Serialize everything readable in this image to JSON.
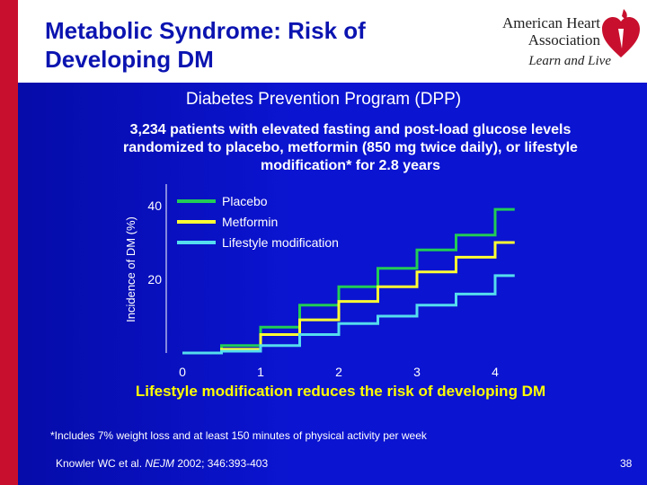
{
  "slide": {
    "title_line1": "Metabolic Syndrome: Risk of",
    "title_line2": "Developing DM",
    "subtitle": "Diabetes Prevention Program (DPP)",
    "description_line1": "3,234 patients with elevated fasting and post-load glucose levels",
    "description_line2": "randomized to placebo, metformin (850 mg twice daily), or lifestyle",
    "description_line3": "modification* for 2.8 years",
    "conclusion": "Lifestyle modification reduces the risk of developing DM",
    "footnote": "*Includes 7% weight loss and at least 150 minutes of physical activity per week",
    "citation_authors": "Knowler WC et al. ",
    "citation_journal": "NEJM",
    "citation_ref": " 2002; 346:393-403",
    "page_number": "38"
  },
  "logo": {
    "line1": "American Heart",
    "line2": "Association",
    "tagline": "Learn and Live",
    "color": "#c8102e"
  },
  "chart_data": {
    "type": "line",
    "step": true,
    "ylabel": "Incidence of DM (%)",
    "xlabel": "",
    "x_ticks": [
      "0",
      "1",
      "2",
      "3",
      "4"
    ],
    "y_ticks": [
      "20",
      "40"
    ],
    "xlim": [
      0,
      4
    ],
    "ylim": [
      0,
      44
    ],
    "legend_position": "top-left",
    "series": [
      {
        "name": "Placebo",
        "color": "#22cc55",
        "points": [
          [
            0,
            0
          ],
          [
            0.5,
            0
          ],
          [
            0.5,
            2
          ],
          [
            1,
            2
          ],
          [
            1,
            7
          ],
          [
            1.5,
            7
          ],
          [
            1.5,
            13
          ],
          [
            2,
            13
          ],
          [
            2,
            18
          ],
          [
            2.5,
            18
          ],
          [
            2.5,
            23
          ],
          [
            3,
            23
          ],
          [
            3,
            28
          ],
          [
            3.5,
            28
          ],
          [
            3.5,
            32
          ],
          [
            4,
            32
          ],
          [
            4,
            39
          ],
          [
            4.25,
            39
          ]
        ]
      },
      {
        "name": "Metformin",
        "color": "#ffff33",
        "points": [
          [
            0,
            0
          ],
          [
            0.5,
            0
          ],
          [
            0.5,
            1
          ],
          [
            1,
            1
          ],
          [
            1,
            5
          ],
          [
            1.5,
            5
          ],
          [
            1.5,
            9
          ],
          [
            2,
            9
          ],
          [
            2,
            14
          ],
          [
            2.5,
            14
          ],
          [
            2.5,
            18
          ],
          [
            3,
            18
          ],
          [
            3,
            22
          ],
          [
            3.5,
            22
          ],
          [
            3.5,
            26
          ],
          [
            4,
            26
          ],
          [
            4,
            30
          ],
          [
            4.25,
            30
          ]
        ]
      },
      {
        "name": "Lifestyle modification",
        "color": "#55ddee",
        "points": [
          [
            0,
            0
          ],
          [
            0.5,
            0
          ],
          [
            0.5,
            0.5
          ],
          [
            1,
            0.5
          ],
          [
            1,
            2
          ],
          [
            1.5,
            2
          ],
          [
            1.5,
            5
          ],
          [
            2,
            5
          ],
          [
            2,
            8
          ],
          [
            2.5,
            8
          ],
          [
            2.5,
            10
          ],
          [
            3,
            10
          ],
          [
            3,
            13
          ],
          [
            3.5,
            13
          ],
          [
            3.5,
            16
          ],
          [
            4,
            16
          ],
          [
            4,
            21
          ],
          [
            4.25,
            21
          ]
        ]
      }
    ]
  }
}
